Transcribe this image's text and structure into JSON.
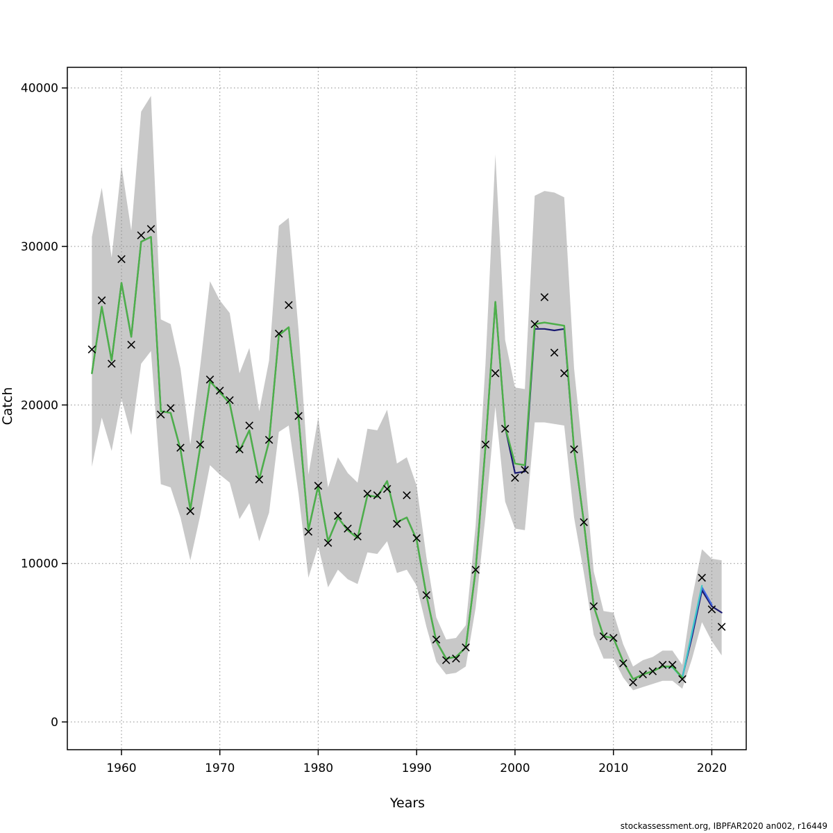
{
  "page": {
    "background": "#ffffff"
  },
  "chart_data": {
    "type": "line",
    "title": "",
    "xlabel": "Years",
    "ylabel": "Catch",
    "footer": "stockassessment.org, IBPFAR2020  an002, r16449",
    "xlim": [
      1954.5,
      2023.5
    ],
    "ylim": [
      -1750,
      41300
    ],
    "x_ticks": [
      1960,
      1970,
      1980,
      1990,
      2000,
      2010,
      2020
    ],
    "y_ticks": [
      0,
      10000,
      20000,
      30000,
      40000
    ],
    "grid": true,
    "legend": "none",
    "years": [
      1957,
      1958,
      1959,
      1960,
      1961,
      1962,
      1963,
      1964,
      1965,
      1966,
      1967,
      1968,
      1969,
      1970,
      1971,
      1972,
      1973,
      1974,
      1975,
      1976,
      1977,
      1978,
      1979,
      1980,
      1981,
      1982,
      1983,
      1984,
      1985,
      1986,
      1987,
      1988,
      1989,
      1990,
      1991,
      1992,
      1993,
      1994,
      1995,
      1996,
      1997,
      1998,
      1999,
      2000,
      2001,
      2002,
      2003,
      2004,
      2005,
      2006,
      2007,
      2008,
      2009,
      2010,
      2011,
      2012,
      2013,
      2014,
      2015,
      2016,
      2017,
      2018,
      2019,
      2020,
      2021
    ],
    "observations": {
      "name": "observed-catch",
      "marker": "x",
      "color": "#000000",
      "values": [
        23500,
        26600,
        22600,
        29200,
        23800,
        30700,
        31100,
        19400,
        19800,
        17300,
        13300,
        17500,
        21600,
        20900,
        20300,
        17200,
        18700,
        15300,
        17800,
        24500,
        26300,
        19300,
        12000,
        14900,
        11300,
        13000,
        12200,
        11700,
        14400,
        14300,
        14700,
        12500,
        14300,
        11600,
        8000,
        5200,
        3900,
        4000,
        4700,
        9600,
        17500,
        22000,
        18500,
        15400,
        15900,
        25100,
        26800,
        23300,
        22000,
        17200,
        12600,
        7300,
        5400,
        5300,
        3700,
        2500,
        3000,
        3200,
        3600,
        3600,
        2700,
        null,
        9100,
        7100,
        6000
      ]
    },
    "band": {
      "name": "confidence-band",
      "color": "#c8c8c8",
      "start_year": 1957,
      "upper": [
        30600,
        33700,
        29300,
        35100,
        31000,
        38500,
        39500,
        25400,
        25100,
        22300,
        17500,
        22400,
        27800,
        26600,
        25800,
        22000,
        23600,
        19600,
        22800,
        31300,
        31800,
        24700,
        15600,
        19200,
        14800,
        16700,
        15700,
        15100,
        18500,
        18400,
        19700,
        16300,
        16700,
        14900,
        10400,
        6600,
        5200,
        5300,
        6100,
        12400,
        22600,
        35800,
        24100,
        21100,
        21000,
        33200,
        33500,
        33400,
        33100,
        22300,
        16300,
        9500,
        7000,
        6900,
        4900,
        3500,
        3900,
        4100,
        4500,
        4500,
        3600,
        7800,
        10900,
        10300,
        10200
      ],
      "lower": [
        16100,
        19200,
        17100,
        20400,
        18100,
        22600,
        23400,
        15000,
        14800,
        12900,
        10200,
        13000,
        16200,
        15600,
        15100,
        12800,
        13800,
        11400,
        13200,
        18300,
        18700,
        14400,
        9100,
        11100,
        8500,
        9600,
        9000,
        8700,
        10700,
        10600,
        11400,
        9400,
        9600,
        8600,
        6000,
        3800,
        3000,
        3100,
        3500,
        7200,
        13000,
        19900,
        13900,
        12200,
        12100,
        18900,
        18900,
        18800,
        18700,
        12900,
        9400,
        5500,
        4000,
        4000,
        2800,
        2000,
        2200,
        2400,
        2600,
        2600,
        2100,
        4000,
        6300,
        5100,
        4200
      ]
    },
    "series": [
      {
        "name": "fit-navy",
        "color": "#191970",
        "width": 2.2,
        "start_year": 1957,
        "values": [
          22000,
          26200,
          22800,
          27700,
          24300,
          30300,
          30600,
          19600,
          19500,
          17200,
          13400,
          17300,
          21500,
          20800,
          20100,
          17100,
          18400,
          15300,
          17700,
          24400,
          24900,
          19200,
          12100,
          14900,
          11400,
          12900,
          12100,
          11600,
          14300,
          14200,
          15200,
          12600,
          12900,
          11500,
          8000,
          5100,
          4000,
          4100,
          4700,
          9600,
          17400,
          26500,
          18600,
          15700,
          15800,
          24800,
          24800,
          24700,
          24800,
          17200,
          12600,
          7300,
          5400,
          5300,
          3800,
          2700,
          3000,
          3200,
          3500,
          3500,
          2800,
          5400,
          8300,
          7300,
          6900
        ]
      },
      {
        "name": "fit-blue",
        "color": "#4169e1",
        "width": 2.2,
        "start_year": 2016,
        "values": [
          3500,
          2800,
          5600,
          8500,
          7400
        ]
      },
      {
        "name": "fit-cyan",
        "color": "#3ec8c8",
        "width": 2.2,
        "start_year": 2015,
        "values": [
          3500,
          3450,
          2750,
          5700,
          8600
        ]
      },
      {
        "name": "fit-green",
        "color": "#4daf4a",
        "width": 2.5,
        "start_year": 1957,
        "values": [
          22000,
          26200,
          22800,
          27700,
          24300,
          30300,
          30600,
          19600,
          19500,
          17200,
          13400,
          17300,
          21500,
          20800,
          20100,
          17100,
          18400,
          15300,
          17700,
          24400,
          24900,
          19200,
          12100,
          14900,
          11400,
          12900,
          12100,
          11600,
          14300,
          14200,
          15200,
          12600,
          12900,
          11500,
          8000,
          5100,
          4000,
          4100,
          4700,
          9600,
          17400,
          26500,
          18600,
          16300,
          16200,
          25100,
          25200,
          25100,
          25000,
          17200,
          12600,
          7300,
          5400,
          5300,
          3800,
          2700,
          3000,
          3200,
          3500,
          3500,
          2800
        ]
      }
    ],
    "colors": {
      "grid": "#8a8a8a",
      "axis": "#000000",
      "marker": "#000000"
    }
  }
}
